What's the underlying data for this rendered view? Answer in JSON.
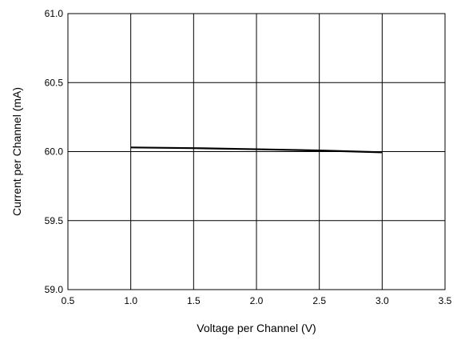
{
  "chart_data": {
    "type": "line",
    "title": "",
    "xlabel": "Voltage per Channel (V)",
    "ylabel": "Current per Channel (mA)",
    "xlim": [
      0.5,
      3.5
    ],
    "ylim": [
      59.0,
      61.0
    ],
    "x_ticks": [
      0.5,
      1.0,
      1.5,
      2.0,
      2.5,
      3.0,
      3.5
    ],
    "x_tick_labels": [
      "0.5",
      "1.0",
      "1.5",
      "2.0",
      "2.5",
      "3.0",
      "3.5"
    ],
    "y_ticks": [
      59.0,
      59.5,
      60.0,
      60.5,
      61.0
    ],
    "y_tick_labels": [
      "59.0",
      "59.5",
      "60.0",
      "60.5",
      "61.0"
    ],
    "grid": true,
    "legend": "none",
    "series": [
      {
        "x": [
          1.0,
          1.5,
          2.0,
          2.5,
          3.0
        ],
        "y": [
          60.03,
          60.025,
          60.017,
          60.008,
          59.995
        ],
        "color": "#000000"
      }
    ]
  }
}
